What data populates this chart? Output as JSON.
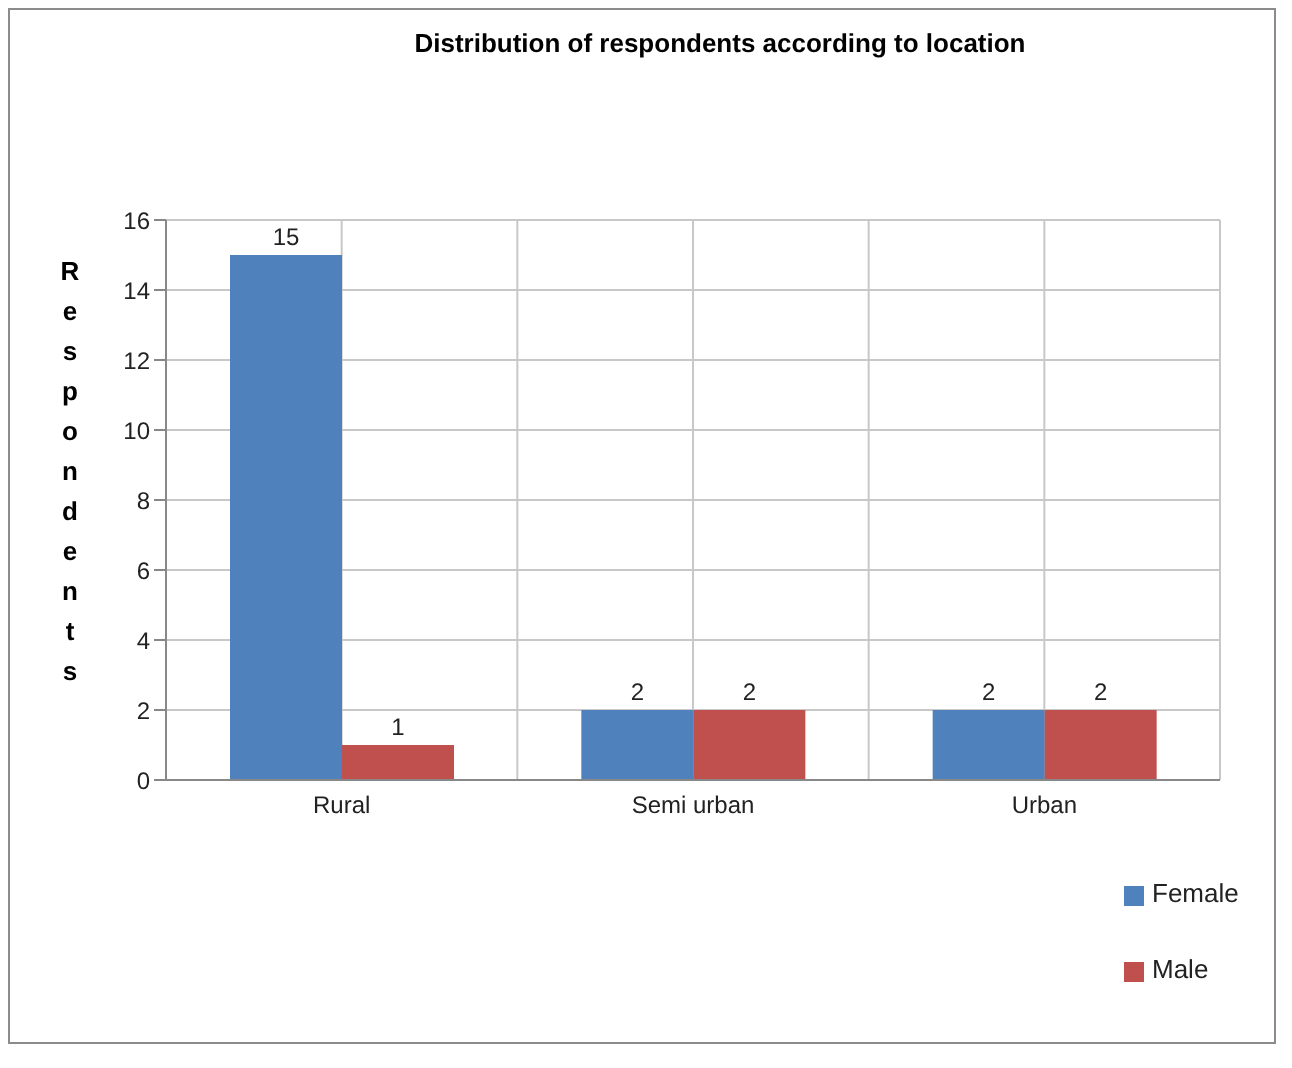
{
  "chart_data": {
    "type": "bar",
    "title": "Distribution of respondents according to location",
    "ylabel": "Respondents",
    "categories": [
      "Rural",
      "Semi urban",
      "Urban"
    ],
    "series": [
      {
        "name": "Female",
        "color": "#4f81bd",
        "values": [
          15,
          2,
          2
        ]
      },
      {
        "name": "Male",
        "color": "#c0504d",
        "values": [
          1,
          2,
          2
        ]
      }
    ],
    "ylim": [
      0,
      16
    ],
    "yticks": [
      0,
      2,
      4,
      6,
      8,
      10,
      12,
      14,
      16
    ],
    "grid": true,
    "legend": "bottom right",
    "data_labels": true
  }
}
